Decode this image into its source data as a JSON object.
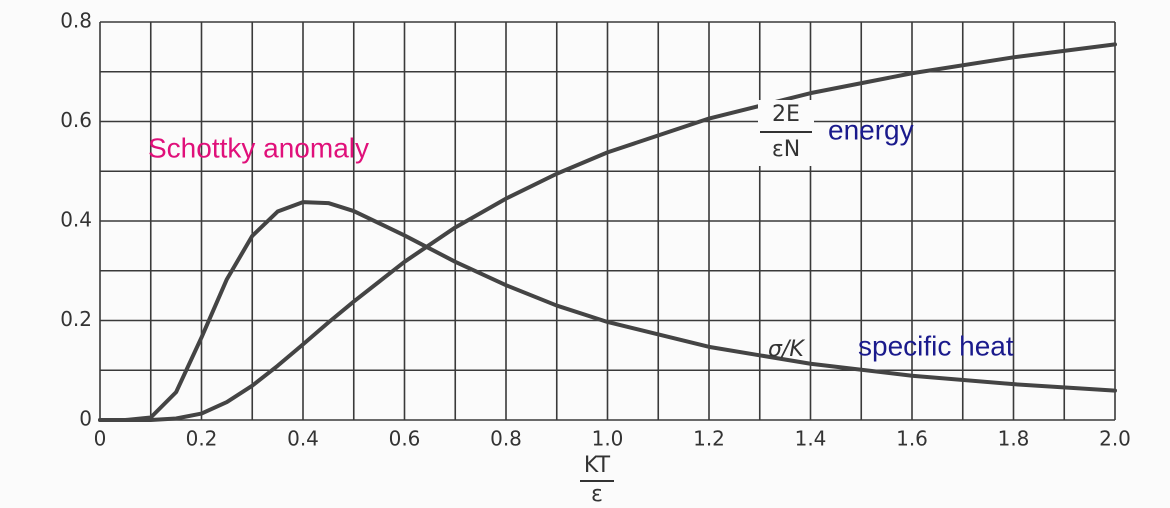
{
  "chart_data": {
    "type": "line",
    "x_label": {
      "numerator": "KT",
      "denominator": "ε"
    },
    "x": [
      0,
      0.05,
      0.1,
      0.15,
      0.2,
      0.25,
      0.3,
      0.35,
      0.4,
      0.45,
      0.5,
      0.6,
      0.7,
      0.8,
      0.9,
      1.0,
      1.2,
      1.4,
      1.6,
      1.8,
      2.0
    ],
    "series": [
      {
        "name": "specific heat",
        "color": "#444444",
        "values": [
          0,
          0,
          0.005,
          0.056,
          0.166,
          0.283,
          0.37,
          0.419,
          0.438,
          0.436,
          0.42,
          0.371,
          0.318,
          0.271,
          0.23,
          0.197,
          0.147,
          0.113,
          0.089,
          0.072,
          0.059
        ]
      },
      {
        "name": "energy",
        "color": "#444444",
        "values": [
          0,
          0,
          0,
          0.003,
          0.013,
          0.036,
          0.069,
          0.109,
          0.152,
          0.196,
          0.238,
          0.318,
          0.387,
          0.445,
          0.495,
          0.538,
          0.606,
          0.657,
          0.697,
          0.729,
          0.755
        ]
      }
    ],
    "curve_labels": [
      {
        "numerator": "2E",
        "denominator": "εN"
      },
      {
        "text": "σ/K"
      }
    ],
    "annotations": [
      {
        "text": "Schottky anomaly",
        "color": "#e0107a"
      },
      {
        "text": "energy",
        "color": "#1a1a8c"
      },
      {
        "text": "specific heat",
        "color": "#1a1a8c"
      }
    ],
    "xlim": [
      0,
      2.0
    ],
    "ylim": [
      0,
      0.8
    ],
    "xticks": [
      0,
      0.2,
      0.4,
      0.6,
      0.8,
      {
        "value": 1.0,
        "label": "1.0"
      },
      1.2,
      1.4,
      1.6,
      1.8,
      {
        "value": 2.0,
        "label": "2.0"
      }
    ],
    "yticks": [
      0,
      0.2,
      0.4,
      0.6,
      0.8
    ],
    "x_gridlines": [
      0,
      0.1,
      0.2,
      0.3,
      0.4,
      0.5,
      0.6,
      0.7,
      0.8,
      0.9,
      1.0,
      1.1,
      1.2,
      1.3,
      1.4,
      1.5,
      1.6,
      1.7,
      1.8,
      1.9,
      2.0
    ],
    "y_gridlines": [
      0,
      0.1,
      0.2,
      0.3,
      0.4,
      0.5,
      0.6,
      0.7,
      0.8
    ],
    "grid": true
  }
}
